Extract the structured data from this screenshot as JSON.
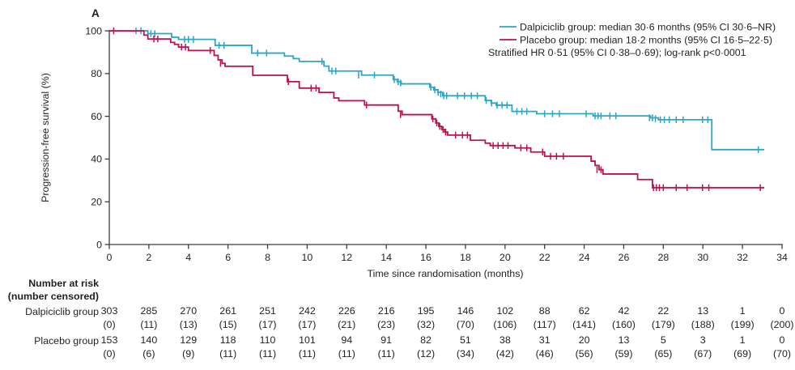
{
  "panel_label": "A",
  "colors": {
    "dalpiciclib": "#2BA6C8",
    "placebo": "#BB1152",
    "axis": "#3E3D40",
    "text": "#231F20",
    "background": "#FFFFFF"
  },
  "legend": {
    "entries": [
      {
        "label": "Dalpiciclib group: median 30·6 months (95% CI 30·6–NR)",
        "color": "#2BA6C8"
      },
      {
        "label": "Placebo group: median 18·2 months (95% CI 16·5–22·5)",
        "color": "#BB1152"
      }
    ],
    "note": "Stratified HR 0·51 (95% CI 0·38–0·69); log-rank p<0·0001"
  },
  "chart_data": {
    "type": "line",
    "subtype": "kaplan-meier-step",
    "title": "",
    "xlabel": "Time since randomisation (months)",
    "ylabel": "Progression-free survival (%)",
    "xlim": [
      0,
      34
    ],
    "ylim": [
      0,
      100
    ],
    "xticks": [
      0,
      2,
      4,
      6,
      8,
      10,
      12,
      14,
      16,
      18,
      20,
      22,
      24,
      26,
      28,
      30,
      32,
      34
    ],
    "yticks": [
      0,
      20,
      40,
      60,
      80,
      100
    ],
    "grid": false,
    "legend_position": "top-right",
    "series": [
      {
        "name": "Dalpiciclib group",
        "color": "#2BA6C8",
        "median_months": "30·6",
        "ci_95": "30·6–NR",
        "end_time": 33.1,
        "points": [
          [
            0,
            100
          ],
          [
            1.95,
            98.7
          ],
          [
            3.15,
            97.0
          ],
          [
            3.5,
            96.0
          ],
          [
            5.35,
            93.2
          ],
          [
            7.2,
            89.6
          ],
          [
            8.85,
            88.2
          ],
          [
            9.3,
            87.0
          ],
          [
            9.6,
            85.7
          ],
          [
            10.85,
            83.5
          ],
          [
            11.1,
            81.2
          ],
          [
            12.75,
            79.3
          ],
          [
            14.35,
            77.2
          ],
          [
            14.55,
            76.2
          ],
          [
            14.75,
            75.2
          ],
          [
            16.2,
            73.6
          ],
          [
            16.4,
            72.4
          ],
          [
            16.6,
            71.2
          ],
          [
            16.85,
            69.6
          ],
          [
            19.0,
            67.4
          ],
          [
            19.3,
            66.2
          ],
          [
            19.55,
            65.2
          ],
          [
            20.35,
            62.3
          ],
          [
            21.6,
            61.2
          ],
          [
            24.45,
            60.2
          ],
          [
            27.35,
            59.3
          ],
          [
            27.75,
            58.4
          ],
          [
            30.45,
            44.4
          ]
        ],
        "censors": [
          [
            1.35,
            100
          ],
          [
            1.6,
            100
          ],
          [
            2.1,
            98.7
          ],
          [
            2.3,
            98.7
          ],
          [
            3.8,
            96.0
          ],
          [
            4.0,
            96.0
          ],
          [
            4.25,
            96.0
          ],
          [
            5.55,
            93.2
          ],
          [
            5.8,
            93.2
          ],
          [
            7.5,
            89.6
          ],
          [
            7.95,
            89.6
          ],
          [
            10.75,
            85.7
          ],
          [
            11.25,
            81.2
          ],
          [
            11.45,
            81.2
          ],
          [
            12.6,
            79.3
          ],
          [
            13.4,
            79.3
          ],
          [
            14.4,
            77.2
          ],
          [
            14.6,
            76.2
          ],
          [
            14.72,
            75.6
          ],
          [
            16.25,
            73.6
          ],
          [
            16.45,
            72.4
          ],
          [
            16.62,
            71.2
          ],
          [
            16.75,
            70.4
          ],
          [
            16.9,
            69.6
          ],
          [
            17.05,
            69.6
          ],
          [
            17.6,
            69.6
          ],
          [
            17.95,
            69.6
          ],
          [
            18.3,
            69.6
          ],
          [
            18.6,
            69.6
          ],
          [
            19.05,
            67.4
          ],
          [
            19.32,
            66.2
          ],
          [
            19.6,
            65.2
          ],
          [
            19.85,
            65.2
          ],
          [
            20.1,
            65.2
          ],
          [
            20.6,
            62.3
          ],
          [
            20.85,
            62.3
          ],
          [
            21.1,
            62.3
          ],
          [
            22.0,
            61.2
          ],
          [
            22.4,
            61.2
          ],
          [
            22.75,
            61.2
          ],
          [
            24.1,
            61.2
          ],
          [
            24.55,
            60.2
          ],
          [
            24.7,
            60.2
          ],
          [
            24.85,
            60.2
          ],
          [
            25.3,
            60.2
          ],
          [
            25.6,
            60.2
          ],
          [
            27.3,
            59.3
          ],
          [
            27.45,
            59.3
          ],
          [
            27.6,
            58.9
          ],
          [
            27.85,
            58.4
          ],
          [
            28.05,
            58.4
          ],
          [
            28.3,
            58.4
          ],
          [
            28.65,
            58.4
          ],
          [
            29.0,
            58.4
          ],
          [
            29.98,
            58.4
          ],
          [
            30.25,
            58.4
          ],
          [
            32.8,
            44.4
          ]
        ]
      },
      {
        "name": "Placebo group",
        "color": "#BB1152",
        "median_months": "18·2",
        "ci_95": "16·5–22·5",
        "end_time": 33.1,
        "points": [
          [
            0,
            100
          ],
          [
            1.75,
            98.0
          ],
          [
            1.95,
            96.2
          ],
          [
            3.1,
            94.6
          ],
          [
            3.3,
            93.7
          ],
          [
            3.5,
            92.4
          ],
          [
            4.0,
            90.8
          ],
          [
            5.3,
            88.5
          ],
          [
            5.5,
            86.4
          ],
          [
            5.7,
            84.8
          ],
          [
            5.85,
            83.4
          ],
          [
            7.25,
            79.2
          ],
          [
            9.0,
            76.2
          ],
          [
            9.6,
            73.2
          ],
          [
            10.6,
            71.2
          ],
          [
            11.35,
            68.6
          ],
          [
            11.6,
            67.3
          ],
          [
            12.9,
            65.3
          ],
          [
            14.6,
            62.4
          ],
          [
            14.8,
            60.8
          ],
          [
            16.3,
            58.8
          ],
          [
            16.5,
            56.9
          ],
          [
            16.65,
            55.3
          ],
          [
            16.8,
            53.8
          ],
          [
            16.95,
            52.6
          ],
          [
            17.1,
            51.2
          ],
          [
            18.25,
            48.8
          ],
          [
            19.0,
            47.4
          ],
          [
            19.25,
            46.3
          ],
          [
            20.5,
            45.2
          ],
          [
            21.3,
            43.3
          ],
          [
            22.0,
            41.3
          ],
          [
            24.35,
            39.0
          ],
          [
            24.55,
            37.0
          ],
          [
            24.75,
            35.0
          ],
          [
            24.95,
            33.0
          ],
          [
            26.7,
            30.4
          ],
          [
            27.45,
            26.6
          ]
        ],
        "censors": [
          [
            0.22,
            100
          ],
          [
            2.25,
            96.2
          ],
          [
            2.45,
            96.2
          ],
          [
            3.65,
            92.4
          ],
          [
            3.85,
            92.4
          ],
          [
            5.1,
            90.8
          ],
          [
            5.62,
            84.8
          ],
          [
            9.05,
            76.2
          ],
          [
            10.2,
            73.2
          ],
          [
            10.45,
            73.2
          ],
          [
            13.0,
            65.3
          ],
          [
            14.72,
            60.8
          ],
          [
            16.35,
            58.8
          ],
          [
            16.55,
            56.9
          ],
          [
            16.7,
            55.3
          ],
          [
            16.87,
            53.8
          ],
          [
            17.0,
            52.6
          ],
          [
            17.5,
            51.2
          ],
          [
            17.85,
            51.2
          ],
          [
            18.1,
            51.2
          ],
          [
            19.4,
            46.3
          ],
          [
            19.65,
            46.3
          ],
          [
            19.9,
            46.3
          ],
          [
            20.15,
            46.3
          ],
          [
            20.8,
            45.2
          ],
          [
            21.1,
            45.2
          ],
          [
            21.9,
            43.3
          ],
          [
            22.3,
            41.3
          ],
          [
            22.6,
            41.3
          ],
          [
            22.95,
            41.3
          ],
          [
            24.65,
            35.0
          ],
          [
            24.85,
            35.0
          ],
          [
            27.5,
            26.6
          ],
          [
            27.65,
            26.6
          ],
          [
            27.8,
            26.6
          ],
          [
            28.0,
            26.6
          ],
          [
            28.65,
            26.6
          ],
          [
            29.2,
            26.6
          ],
          [
            29.98,
            26.6
          ],
          [
            30.3,
            26.6
          ],
          [
            32.9,
            26.6
          ]
        ]
      }
    ]
  },
  "risk_table": {
    "header_line1": "Number at risk",
    "header_line2": "(number censored)",
    "times": [
      0,
      2,
      4,
      6,
      8,
      10,
      12,
      14,
      16,
      18,
      20,
      22,
      24,
      26,
      28,
      30,
      32,
      34
    ],
    "rows": [
      {
        "label": "Dalpiciclib group",
        "at_risk": [
          303,
          285,
          270,
          261,
          251,
          242,
          226,
          216,
          195,
          146,
          102,
          88,
          62,
          42,
          22,
          13,
          1,
          0
        ],
        "censored": [
          "(0)",
          "(11)",
          "(13)",
          "(15)",
          "(17)",
          "(17)",
          "(21)",
          "(23)",
          "(32)",
          "(70)",
          "(106)",
          "(117)",
          "(141)",
          "(160)",
          "(179)",
          "(188)",
          "(199)",
          "(200)"
        ]
      },
      {
        "label": "Placebo group",
        "at_risk": [
          153,
          140,
          129,
          118,
          110,
          101,
          94,
          91,
          82,
          51,
          38,
          31,
          20,
          13,
          5,
          3,
          1,
          0
        ],
        "censored": [
          "(0)",
          "(6)",
          "(9)",
          "(11)",
          "(11)",
          "(11)",
          "(11)",
          "(11)",
          "(12)",
          "(34)",
          "(42)",
          "(46)",
          "(56)",
          "(59)",
          "(65)",
          "(67)",
          "(69)",
          "(70)"
        ]
      }
    ]
  }
}
